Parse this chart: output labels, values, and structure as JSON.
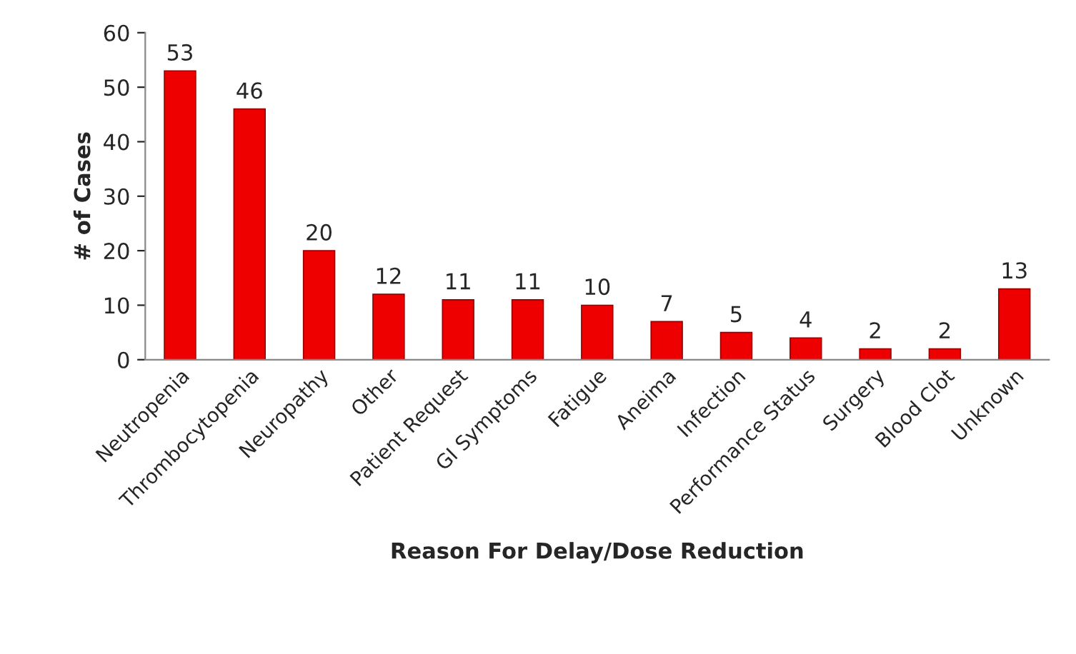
{
  "chart_data": {
    "type": "bar",
    "xlabel": "Reason For Delay/Dose Reduction",
    "ylabel": "# of Cases",
    "categories": [
      "Neutropenia",
      "Thrombocytopenia",
      "Neuropathy",
      "Other",
      "Patient Request",
      "GI Symptoms",
      "Fatigue",
      "Aneima",
      "Infection",
      "Performance Status",
      "Surgery",
      "Blood Clot",
      "Unknown"
    ],
    "values": [
      53,
      46,
      20,
      12,
      11,
      11,
      10,
      7,
      5,
      4,
      2,
      2,
      13
    ],
    "color": "#ee0000",
    "ylim": [
      0,
      60
    ],
    "yticks": [
      0,
      10,
      20,
      30,
      40,
      50,
      60
    ],
    "grid": false,
    "data_labels": true
  }
}
